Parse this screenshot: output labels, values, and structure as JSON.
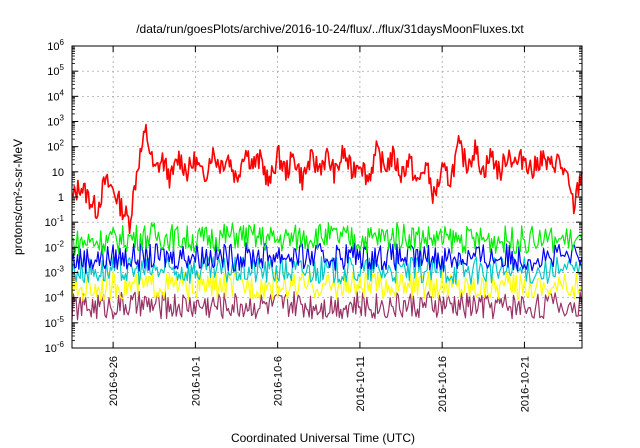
{
  "chart_data": {
    "type": "line",
    "title": "/data/run/goesPlots/archive/2016-10-24/flux/../flux/31daysMoonFluxes.txt",
    "xlabel": "Coordinated Universal Time (UTC)",
    "ylabel": "protons/cm²-s-sr-MeV",
    "yscale": "log",
    "ylim": [
      1e-06,
      1000000.0
    ],
    "xlim": [
      "2016-09-23T12:00",
      "2016-10-24T12:00"
    ],
    "grid": true,
    "y_ticks": [
      {
        "base": "10",
        "exp": "-6"
      },
      {
        "base": "10",
        "exp": "-5"
      },
      {
        "base": "10",
        "exp": "-4"
      },
      {
        "base": "10",
        "exp": "-3"
      },
      {
        "base": "10",
        "exp": "-2"
      },
      {
        "base": "10",
        "exp": "-1"
      },
      {
        "base": "1",
        "exp": ""
      },
      {
        "base": "10",
        "exp": ""
      },
      {
        "base": "10",
        "exp": "2"
      },
      {
        "base": "10",
        "exp": "3"
      },
      {
        "base": "10",
        "exp": "4"
      },
      {
        "base": "10",
        "exp": "5"
      },
      {
        "base": "10",
        "exp": "6"
      }
    ],
    "x_ticks": [
      "2016-9-26",
      "2016-10-1",
      "2016-10-6",
      "2016-10-11",
      "2016-10-16",
      "2016-10-21"
    ],
    "series": [
      {
        "color": "#ff0000",
        "x": [
          "2016-09-23T12:00",
          "2016-09-24T00:00",
          "2016-09-24T12:00",
          "2016-09-25T00:00",
          "2016-09-25T12:00",
          "2016-09-26T00:00",
          "2016-09-26T12:00",
          "2016-09-27T00:00",
          "2016-09-27T12:00",
          "2016-09-28T00:00",
          "2016-09-28T12:00",
          "2016-09-29T00:00",
          "2016-09-29T12:00",
          "2016-09-30T00:00",
          "2016-09-30T12:00",
          "2016-10-01T00:00",
          "2016-10-01T12:00",
          "2016-10-02T00:00",
          "2016-10-02T12:00",
          "2016-10-03T00:00",
          "2016-10-03T12:00",
          "2016-10-04T00:00",
          "2016-10-04T12:00",
          "2016-10-05T00:00",
          "2016-10-05T12:00",
          "2016-10-06T00:00",
          "2016-10-06T12:00",
          "2016-10-07T00:00",
          "2016-10-07T12:00",
          "2016-10-08T00:00",
          "2016-10-08T12:00",
          "2016-10-09T00:00",
          "2016-10-09T12:00",
          "2016-10-10T00:00",
          "2016-10-10T12:00",
          "2016-10-11T00:00",
          "2016-10-11T12:00",
          "2016-10-12T00:00",
          "2016-10-12T12:00",
          "2016-10-13T00:00",
          "2016-10-13T12:00",
          "2016-10-14T00:00",
          "2016-10-14T12:00",
          "2016-10-15T00:00",
          "2016-10-15T12:00",
          "2016-10-16T00:00",
          "2016-10-16T12:00",
          "2016-10-17T00:00",
          "2016-10-17T12:00",
          "2016-10-18T00:00",
          "2016-10-18T12:00",
          "2016-10-19T00:00",
          "2016-10-19T12:00",
          "2016-10-20T00:00",
          "2016-10-20T12:00",
          "2016-10-21T00:00",
          "2016-10-21T12:00",
          "2016-10-22T00:00",
          "2016-10-22T12:00",
          "2016-10-23T00:00",
          "2016-10-23T12:00",
          "2016-10-24T00:00",
          "2016-10-24T12:00"
        ],
        "y": [
          0.8,
          3,
          1,
          0.3,
          4,
          2,
          0.4,
          0.1,
          20,
          400,
          10,
          30,
          5,
          40,
          10,
          30,
          5,
          60,
          20,
          40,
          5,
          80,
          20,
          30,
          3,
          50,
          10,
          40,
          5,
          30,
          15,
          40,
          8,
          60,
          10,
          30,
          5,
          60,
          15,
          40,
          8,
          30,
          3,
          20,
          1,
          10,
          5,
          100,
          20,
          80,
          10,
          50,
          8,
          60,
          20,
          40,
          10,
          40,
          15,
          30,
          8,
          0.4,
          10
        ]
      },
      {
        "color": "#00ee00",
        "x": [
          "2016-09-23T12:00",
          "2016-09-26T00:00",
          "2016-09-28T12:00",
          "2016-10-01T00:00",
          "2016-10-03T12:00",
          "2016-10-06T00:00",
          "2016-10-08T12:00",
          "2016-10-11T00:00",
          "2016-10-13T12:00",
          "2016-10-16T00:00",
          "2016-10-18T12:00",
          "2016-10-21T00:00",
          "2016-10-24T12:00"
        ],
        "y": [
          0.015,
          0.02,
          0.03,
          0.02,
          0.03,
          0.02,
          0.03,
          0.02,
          0.03,
          0.02,
          0.02,
          0.02,
          0.02
        ]
      },
      {
        "color": "#0000ff",
        "x": [
          "2016-09-23T12:00",
          "2016-09-26T00:00",
          "2016-09-28T12:00",
          "2016-10-01T00:00",
          "2016-10-03T12:00",
          "2016-10-06T00:00",
          "2016-10-08T12:00",
          "2016-10-11T00:00",
          "2016-10-13T12:00",
          "2016-10-16T00:00",
          "2016-10-18T12:00",
          "2016-10-21T00:00",
          "2016-10-24T12:00"
        ],
        "y": [
          0.003,
          0.004,
          0.004,
          0.005,
          0.004,
          0.005,
          0.004,
          0.005,
          0.004,
          0.004,
          0.004,
          0.004,
          0.004
        ]
      },
      {
        "color": "#00c8c8",
        "x": [
          "2016-09-23T12:00",
          "2016-09-26T00:00",
          "2016-09-28T12:00",
          "2016-10-01T00:00",
          "2016-10-03T12:00",
          "2016-10-06T00:00",
          "2016-10-08T12:00",
          "2016-10-11T00:00",
          "2016-10-13T12:00",
          "2016-10-16T00:00",
          "2016-10-18T12:00",
          "2016-10-21T00:00",
          "2016-10-24T12:00"
        ],
        "y": [
          0.0012,
          0.0012,
          0.0012,
          0.0012,
          0.0012,
          0.0012,
          0.0012,
          0.0012,
          0.0012,
          0.0012,
          0.0012,
          0.0012,
          0.0012
        ]
      },
      {
        "color": "#ffff00",
        "x": [
          "2016-09-23T12:00",
          "2016-09-26T00:00",
          "2016-09-28T12:00",
          "2016-10-01T00:00",
          "2016-10-03T12:00",
          "2016-10-06T00:00",
          "2016-10-08T12:00",
          "2016-10-11T00:00",
          "2016-10-13T12:00",
          "2016-10-16T00:00",
          "2016-10-18T12:00",
          "2016-10-21T00:00",
          "2016-10-24T12:00"
        ],
        "y": [
          0.0002,
          0.0003,
          0.0003,
          0.0003,
          0.0003,
          0.0003,
          0.0003,
          0.0003,
          0.0003,
          0.0003,
          0.0003,
          0.0003,
          0.0003
        ]
      },
      {
        "color": "#993366",
        "x": [
          "2016-09-23T12:00",
          "2016-09-26T00:00",
          "2016-09-28T12:00",
          "2016-10-01T00:00",
          "2016-10-03T12:00",
          "2016-10-06T00:00",
          "2016-10-08T12:00",
          "2016-10-11T00:00",
          "2016-10-13T12:00",
          "2016-10-16T00:00",
          "2016-10-18T12:00",
          "2016-10-21T00:00",
          "2016-10-24T12:00"
        ],
        "y": [
          4e-05,
          5e-05,
          5e-05,
          5e-05,
          5e-05,
          5e-05,
          5e-05,
          5e-05,
          5e-05,
          5e-05,
          5e-05,
          5e-05,
          5e-05
        ]
      }
    ]
  }
}
